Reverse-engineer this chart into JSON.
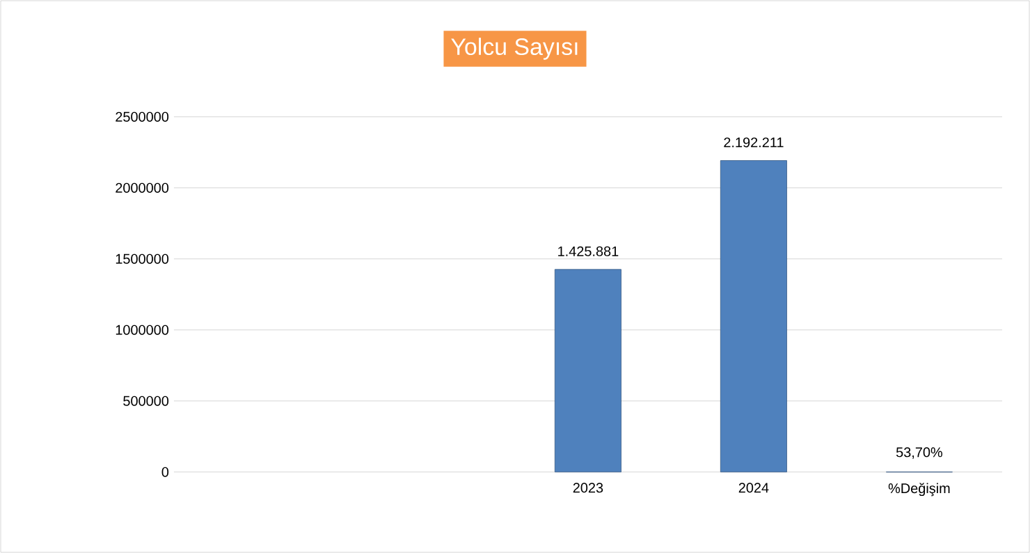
{
  "chart_data": {
    "type": "bar",
    "title": "Yolcu Sayısı",
    "categories": [
      null,
      null,
      "2023",
      "2024",
      "%Değişim"
    ],
    "values": [
      null,
      null,
      1425881,
      2192211,
      53.7
    ],
    "value_labels": [
      null,
      null,
      "1.425.881",
      "2.192.211",
      "53,70%"
    ],
    "color": "#4f81bd",
    "ylim": [
      0,
      2500000
    ],
    "yticks": [
      0,
      500000,
      1000000,
      1500000,
      2000000,
      2500000
    ],
    "grid": "y"
  }
}
